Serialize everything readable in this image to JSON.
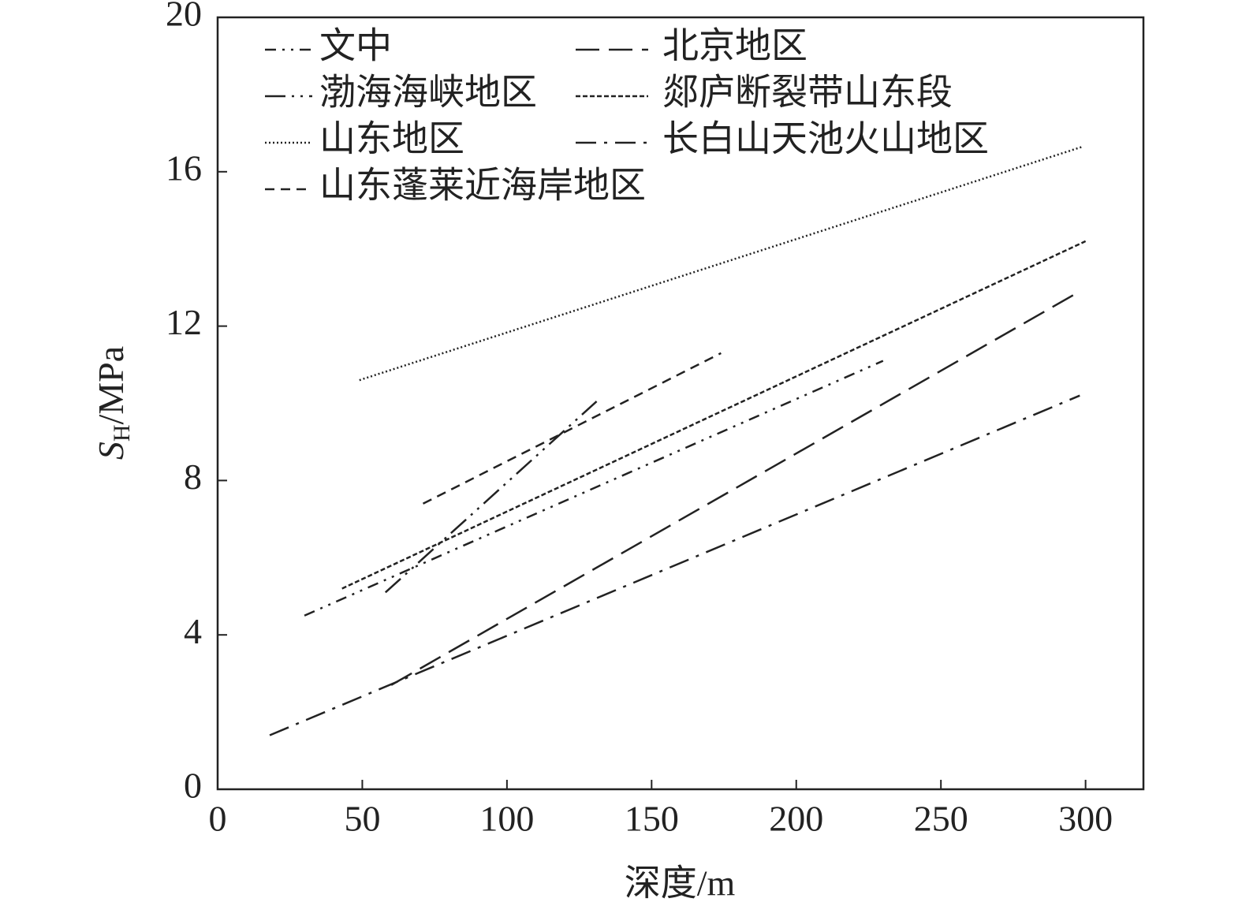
{
  "chart_data": {
    "type": "line",
    "xlabel": "深度/m",
    "ylabel": [
      "S",
      "H",
      "/MPa"
    ],
    "xlim": [
      0,
      320
    ],
    "ylim": [
      0,
      20
    ],
    "xticks": [
      0,
      50,
      100,
      150,
      200,
      250,
      300
    ],
    "yticks": [
      0,
      4,
      8,
      12,
      16,
      20
    ],
    "series": [
      {
        "name": "文中",
        "color": "#222",
        "dash": "14 8 3 8 3 8",
        "x": [
          30,
          230
        ],
        "values": [
          4.5,
          11.1
        ]
      },
      {
        "name": "北京地区",
        "color": "#222",
        "dash": "30 12",
        "x": [
          60,
          298
        ],
        "values": [
          2.7,
          12.9
        ]
      },
      {
        "name": "渤海海峡地区",
        "color": "#222",
        "dash": "26 8 3 8 3 8",
        "x": [
          58,
          131
        ],
        "values": [
          5.1,
          10.05
        ]
      },
      {
        "name": "郯庐断裂带山东段",
        "color": "#222",
        "dash": "6 3",
        "x": [
          43,
          300
        ],
        "values": [
          5.2,
          14.2
        ]
      },
      {
        "name": "山东地区",
        "color": "#222",
        "dash": "2 3",
        "x": [
          49,
          299
        ],
        "values": [
          10.6,
          16.65
        ]
      },
      {
        "name": "长白山天池火山地区",
        "color": "#222",
        "dash": "26 10 4 10",
        "x": [
          18,
          298
        ],
        "values": [
          1.4,
          10.2
        ]
      },
      {
        "name": "山东蓬莱近海岸地区",
        "color": "#222",
        "dash": "12 8",
        "x": [
          71,
          174
        ],
        "values": [
          7.4,
          11.3
        ]
      }
    ]
  }
}
